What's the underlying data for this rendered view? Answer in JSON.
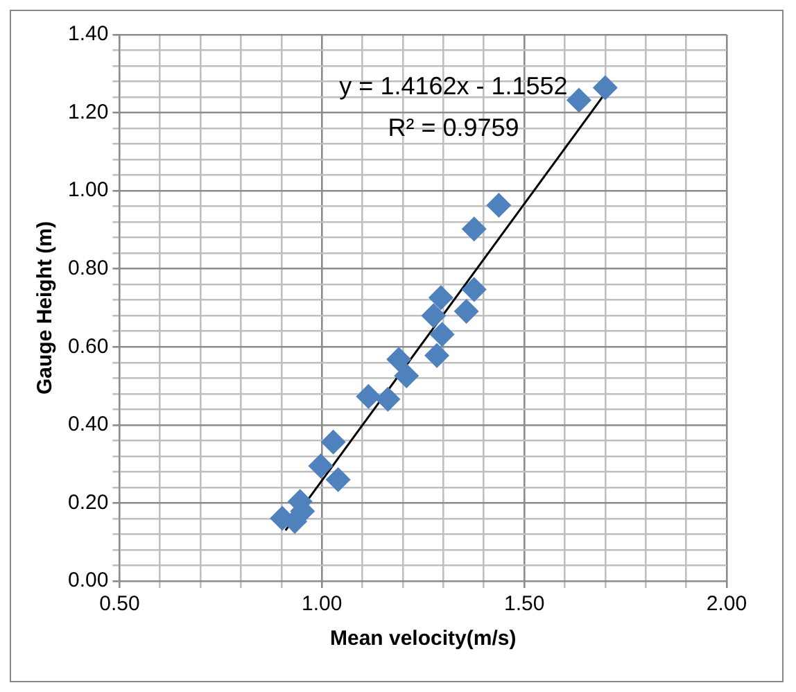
{
  "chart_data": {
    "type": "scatter",
    "xlabel": "Mean velocity(m/s)",
    "ylabel": "Gauge Height (m)",
    "xlim": [
      0.5,
      2.0
    ],
    "ylim": [
      0,
      1.4
    ],
    "xticks": [
      {
        "value": 0.5,
        "label": "0.50"
      },
      {
        "value": 0.6,
        "label": null
      },
      {
        "value": 0.7,
        "label": null
      },
      {
        "value": 0.8,
        "label": null
      },
      {
        "value": 0.9,
        "label": null
      },
      {
        "value": 1.0,
        "label": "1.00"
      },
      {
        "value": 1.1,
        "label": null
      },
      {
        "value": 1.2,
        "label": null
      },
      {
        "value": 1.3,
        "label": null
      },
      {
        "value": 1.4,
        "label": null
      },
      {
        "value": 1.5,
        "label": "1.50"
      },
      {
        "value": 1.6,
        "label": null
      },
      {
        "value": 1.7,
        "label": null
      },
      {
        "value": 1.8,
        "label": null
      },
      {
        "value": 1.9,
        "label": null
      },
      {
        "value": 2.0,
        "label": "2.00"
      }
    ],
    "yticks": [
      {
        "value": 0,
        "label": "0.00"
      },
      {
        "value": 0.04,
        "label": null
      },
      {
        "value": 0.08,
        "label": null
      },
      {
        "value": 0.12,
        "label": null
      },
      {
        "value": 0.16,
        "label": null
      },
      {
        "value": 0.2,
        "label": "0.20"
      },
      {
        "value": 0.24,
        "label": null
      },
      {
        "value": 0.28,
        "label": null
      },
      {
        "value": 0.32,
        "label": null
      },
      {
        "value": 0.36,
        "label": null
      },
      {
        "value": 0.4,
        "label": "0.40"
      },
      {
        "value": 0.44,
        "label": null
      },
      {
        "value": 0.48,
        "label": null
      },
      {
        "value": 0.52,
        "label": null
      },
      {
        "value": 0.56,
        "label": null
      },
      {
        "value": 0.6,
        "label": "0.60"
      },
      {
        "value": 0.64,
        "label": null
      },
      {
        "value": 0.68,
        "label": null
      },
      {
        "value": 0.72,
        "label": null
      },
      {
        "value": 0.76,
        "label": null
      },
      {
        "value": 0.8,
        "label": "0.80"
      },
      {
        "value": 0.84,
        "label": null
      },
      {
        "value": 0.88,
        "label": null
      },
      {
        "value": 0.92,
        "label": null
      },
      {
        "value": 0.96,
        "label": null
      },
      {
        "value": 1.0,
        "label": "1.00"
      },
      {
        "value": 1.04,
        "label": null
      },
      {
        "value": 1.08,
        "label": null
      },
      {
        "value": 1.12,
        "label": null
      },
      {
        "value": 1.16,
        "label": null
      },
      {
        "value": 1.2,
        "label": "1.20"
      },
      {
        "value": 1.24,
        "label": null
      },
      {
        "value": 1.28,
        "label": null
      },
      {
        "value": 1.32,
        "label": null
      },
      {
        "value": 1.36,
        "label": null
      },
      {
        "value": 1.4,
        "label": "1.40"
      }
    ],
    "grid": true,
    "legend": false,
    "marker": "diamond",
    "annotations": [
      "y = 1.4162x - 1.1552",
      "R² = 0.9759"
    ],
    "series": [
      {
        "color": "#4f81bd",
        "x": [
          1.7,
          1.635,
          1.437,
          1.376,
          1.376,
          1.294,
          1.357,
          1.276,
          1.297,
          1.284,
          1.19,
          1.209,
          1.115,
          1.163,
          1.028,
          0.997,
          1.04,
          0.946,
          0.952,
          0.902,
          0.933
        ],
        "values": [
          1.264,
          1.232,
          0.963,
          0.902,
          0.747,
          0.726,
          0.691,
          0.68,
          0.632,
          0.578,
          0.568,
          0.526,
          0.473,
          0.466,
          0.356,
          0.295,
          0.26,
          0.204,
          0.179,
          0.161,
          0.153
        ]
      },
      {
        "type": "line",
        "color": "#000000",
        "marker": "none",
        "x": [
          0.91,
          1.7
        ],
        "values": [
          0.13,
          1.25
        ]
      }
    ]
  }
}
